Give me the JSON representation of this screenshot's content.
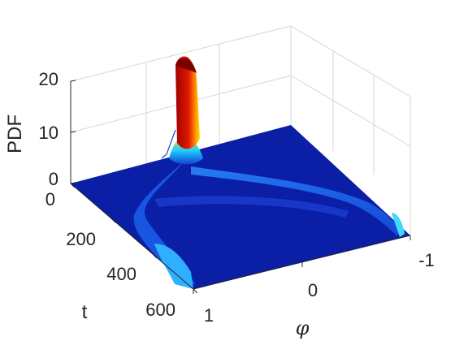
{
  "chart_data": {
    "type": "surface",
    "title": "",
    "zlabel": "PDF",
    "ylabel": "t",
    "xlabel": "φ",
    "z_ticks": [
      "0",
      "10",
      "20"
    ],
    "t_ticks": [
      "0",
      "200",
      "400",
      "600"
    ],
    "phi_ticks": [
      "1",
      "0",
      "-1"
    ],
    "zlim": [
      0,
      20
    ],
    "tlim": [
      0,
      600
    ],
    "philim": [
      -1,
      1
    ],
    "grid": true,
    "colormap": "jet",
    "colors": {
      "low": "#0a1ea6",
      "mid": "#00c8ff",
      "high": "#ffe000",
      "peak": "#b30000"
    },
    "features": [
      {
        "description": "initial peak",
        "phi": 0,
        "t": 0,
        "pdf": 22
      },
      {
        "description": "spreading ridge",
        "t_range": [
          0,
          600
        ],
        "pdf": 2
      }
    ]
  }
}
